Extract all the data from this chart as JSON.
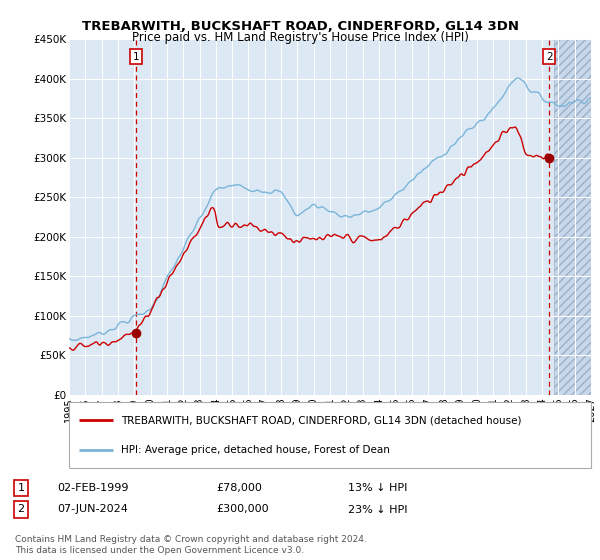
{
  "title": "TREBARWITH, BUCKSHAFT ROAD, CINDERFORD, GL14 3DN",
  "subtitle": "Price paid vs. HM Land Registry's House Price Index (HPI)",
  "xlim_start": 1995.0,
  "xlim_end": 2027.0,
  "ylim_bottom": 0,
  "ylim_top": 450000,
  "yticks": [
    0,
    50000,
    100000,
    150000,
    200000,
    250000,
    300000,
    350000,
    400000,
    450000
  ],
  "ytick_labels": [
    "£0",
    "£50K",
    "£100K",
    "£150K",
    "£200K",
    "£250K",
    "£300K",
    "£350K",
    "£400K",
    "£450K"
  ],
  "xticks": [
    1995,
    1996,
    1997,
    1998,
    1999,
    2000,
    2001,
    2002,
    2003,
    2004,
    2005,
    2006,
    2007,
    2008,
    2009,
    2010,
    2011,
    2012,
    2013,
    2014,
    2015,
    2016,
    2017,
    2018,
    2019,
    2020,
    2021,
    2022,
    2023,
    2024,
    2025,
    2026,
    2027
  ],
  "background_color": "#ffffff",
  "plot_bg_color": "#dce9f5",
  "future_bg_color": "#c8d8ea",
  "grid_color": "#ffffff",
  "hpi_line_color": "#7ab4d8",
  "price_line_color": "#cc0000",
  "sale1_x": 1999.085,
  "sale1_y": 78000,
  "sale2_x": 2024.44,
  "sale2_y": 300000,
  "marker_color": "#990000",
  "vline_color": "#cc0000",
  "future_start": 2024.75,
  "legend_entry1": "TREBARWITH, BUCKSHAFT ROAD, CINDERFORD, GL14 3DN (detached house)",
  "legend_entry2": "HPI: Average price, detached house, Forest of Dean",
  "table_row1": [
    "1",
    "02-FEB-1999",
    "£78,000",
    "13% ↓ HPI"
  ],
  "table_row2": [
    "2",
    "07-JUN-2024",
    "£300,000",
    "23% ↓ HPI"
  ],
  "footer": "Contains HM Land Registry data © Crown copyright and database right 2024.\nThis data is licensed under the Open Government Licence v3.0.",
  "title_fontsize": 9.5,
  "subtitle_fontsize": 8.5
}
